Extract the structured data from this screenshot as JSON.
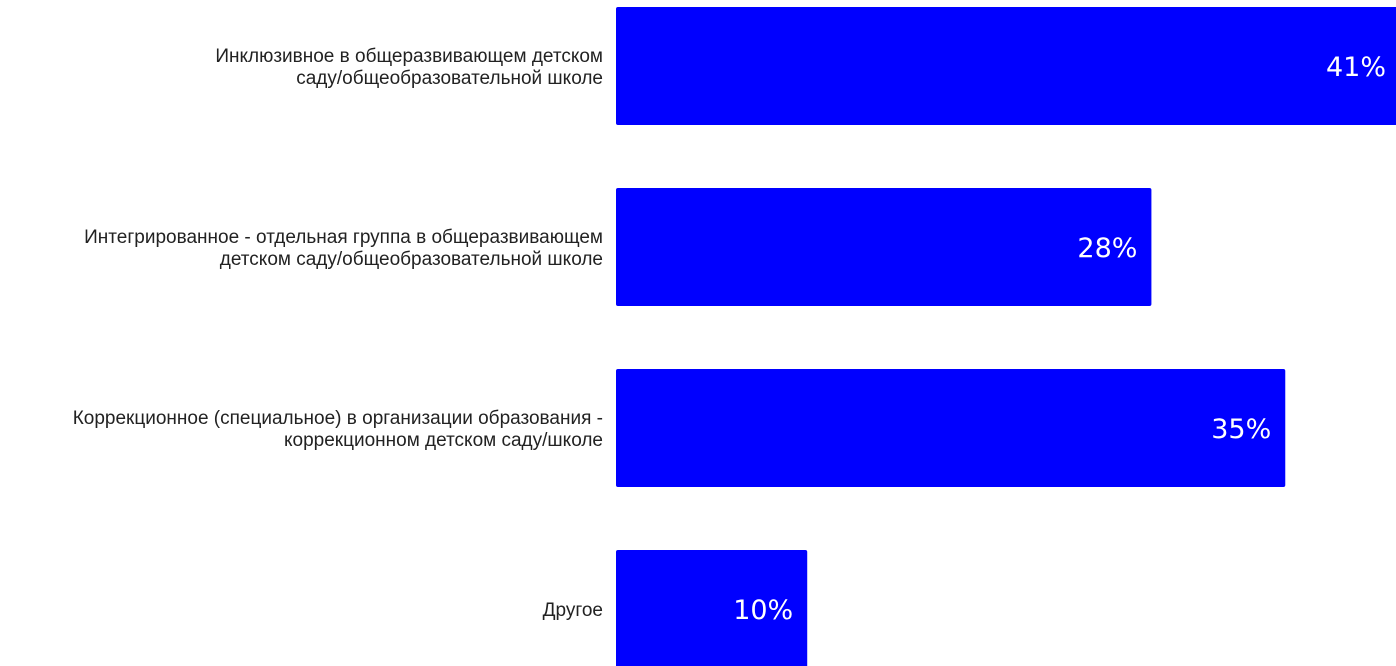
{
  "chart_data": {
    "type": "bar",
    "orientation": "horizontal",
    "categories": [
      [
        "Инклюзивное в общеразвивающем детском",
        "саду/общеобразовательной школе"
      ],
      [
        "Интегрированное - отдельная группа в общеразвивающем",
        "детском саду/общеобразовательной школе"
      ],
      [
        "Коррекционное (специальное) в организации образования -",
        "коррекционном детском саду/школе"
      ],
      [
        "Другое"
      ]
    ],
    "values": [
      41,
      28,
      35,
      10
    ],
    "value_labels": [
      "41%",
      "28%",
      "35%",
      "10%"
    ],
    "unit": "%",
    "xlim": [
      0,
      41
    ],
    "bar_color": "#0000ff",
    "label_color": "#ffffff",
    "title": "",
    "xlabel": "",
    "ylabel": "",
    "grid": false,
    "legend": "none"
  }
}
